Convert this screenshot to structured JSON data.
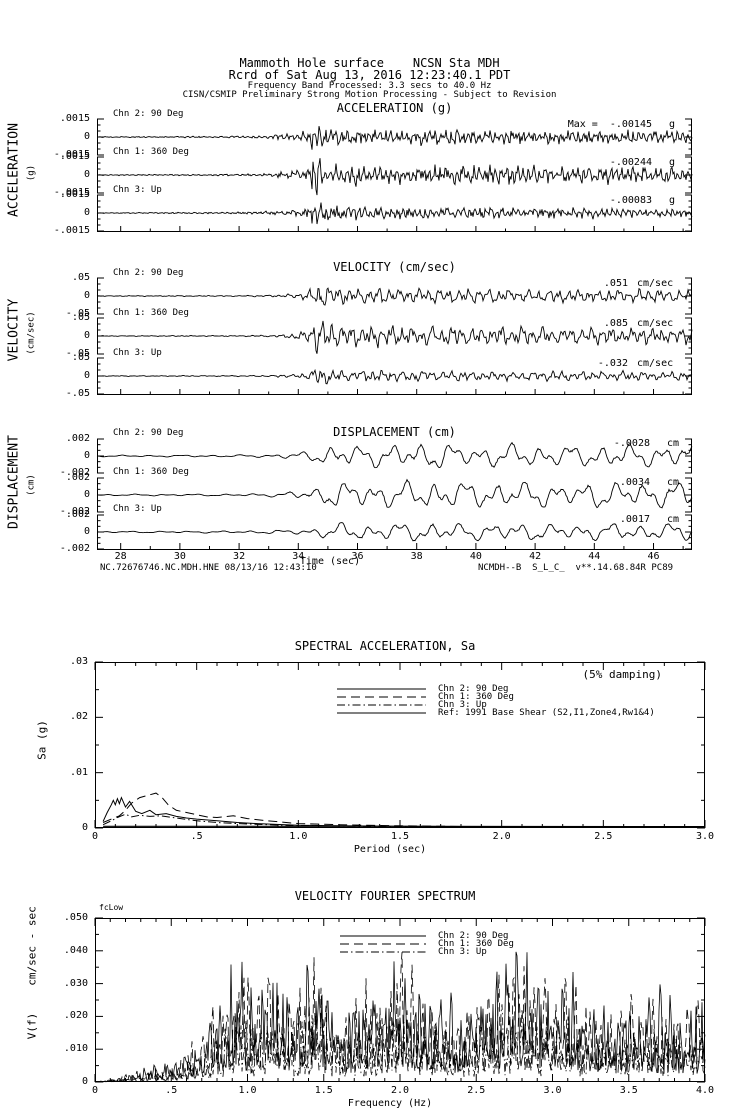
{
  "header": {
    "line1": "Mammoth Hole surface    NCSN Sta MDH",
    "line2": "Rcrd of Sat Aug 13, 2016 12:23:40.1 PDT",
    "line3": "Frequency Band Processed: 3.3 secs to 40.0 Hz",
    "line4": "CISN/CSMIP Preliminary Strong Motion Processing - Subject to Revision"
  },
  "colors": {
    "ink": "#000000",
    "background": "#ffffff"
  },
  "time_series": {
    "footer_left": "NC.72676746.NC.MDH.HNE 08/13/16 12:43:10",
    "footer_right": "NCMDH--B  S_L_C_  v**.14.68.84R PC89",
    "time_axis": {
      "label": "Time (sec)",
      "tick_labels": [
        "28",
        "30",
        "32",
        "34",
        "36",
        "38",
        "40",
        "42",
        "44",
        "46"
      ]
    },
    "panels": [
      {
        "id": "acceleration",
        "title": "ACCELERATION (g)",
        "side_label": "ACCELERATION",
        "side_unit": "(g)",
        "axis_labels": [
          ".0015",
          "0",
          "-.0015"
        ],
        "channels": [
          {
            "name": "Chn 2: 90 Deg",
            "max": "Max =  -.00145",
            "unit": "g"
          },
          {
            "name": "Chn 1: 360 Deg",
            "max": "-.00244",
            "unit": "g"
          },
          {
            "name": "Chn 3: Up",
            "max": "-.00083",
            "unit": "g"
          }
        ]
      },
      {
        "id": "velocity",
        "title": "VELOCITY (cm/sec)",
        "side_label": "VELOCITY",
        "side_unit": "(cm/sec)",
        "axis_labels": [
          ".05",
          "0",
          "-.05"
        ],
        "channels": [
          {
            "name": "Chn 2: 90 Deg",
            "max": ".051",
            "unit": "cm/sec"
          },
          {
            "name": "Chn 1: 360 Deg",
            "max": ".085",
            "unit": "cm/sec"
          },
          {
            "name": "Chn 3: Up",
            "max": "-.032",
            "unit": "cm/sec"
          }
        ]
      },
      {
        "id": "displacement",
        "title": "DISPLACEMENT (cm)",
        "side_label": "DISPLACEMENT",
        "side_unit": "(cm)",
        "axis_labels": [
          ".002",
          "0",
          "-.002"
        ],
        "channels": [
          {
            "name": "Chn 2: 90 Deg",
            "max": "-.0028",
            "unit": "cm"
          },
          {
            "name": "Chn 1: 360 Deg",
            "max": ".0034",
            "unit": "cm"
          },
          {
            "name": "Chn 3: Up",
            "max": ".0017",
            "unit": "cm"
          }
        ]
      }
    ]
  },
  "sa_plot": {
    "title": "SPECTRAL ACCELERATION, Sa",
    "damping_note": "(5% damping)",
    "ylabel": "Sa (g)",
    "xlabel": "Period (sec)",
    "y_ticks": [
      ".03",
      ".02",
      ".01",
      "0"
    ],
    "x_ticks": [
      "0",
      ".5",
      "1.0",
      "1.5",
      "2.0",
      "2.5",
      "3.0"
    ],
    "legend": [
      {
        "label": "Chn 2: 90 Deg",
        "style": "solid"
      },
      {
        "label": "Chn 1: 360 Deg",
        "style": "longdash"
      },
      {
        "label": "Chn 3: Up",
        "style": "dashdot"
      },
      {
        "label": "Ref: 1991 Base Shear (S2,I1,Zone4,Rw1&4)",
        "style": "solid"
      }
    ]
  },
  "fourier_plot": {
    "title": "VELOCITY FOURIER SPECTRUM",
    "corner_label": "fcLow",
    "ylabel_top": "cm/sec - sec",
    "ylabel_bottom": "V(f)",
    "xlabel": "Frequency (Hz)",
    "y_ticks": [
      ".050",
      ".040",
      ".030",
      ".020",
      ".010",
      "0"
    ],
    "x_ticks": [
      "0",
      ".5",
      "1.0",
      "1.5",
      "2.0",
      "2.5",
      "3.0",
      "3.5",
      "4.0"
    ],
    "legend": [
      {
        "label": "Chn 2: 90 Deg",
        "style": "solid"
      },
      {
        "label": "Chn 1: 360 Deg",
        "style": "longdash"
      },
      {
        "label": "Chn 3: Up",
        "style": "dashdot"
      }
    ]
  },
  "chart_data": [
    {
      "type": "line",
      "id": "acceleration-time-series",
      "title": "ACCELERATION (g)",
      "xlabel": "Time (sec)",
      "xlim": [
        27.2,
        47.3
      ],
      "ylim_per_channel": [
        -0.0015,
        0.0015
      ],
      "event_onset_sec": 34.4,
      "series": [
        {
          "name": "Chn 2: 90 Deg",
          "max_value": -0.00145,
          "unit": "g"
        },
        {
          "name": "Chn 1: 360 Deg",
          "max_value": -0.00244,
          "unit": "g"
        },
        {
          "name": "Chn 3: Up",
          "max_value": -0.00083,
          "unit": "g"
        }
      ]
    },
    {
      "type": "line",
      "id": "velocity-time-series",
      "title": "VELOCITY (cm/sec)",
      "xlabel": "Time (sec)",
      "xlim": [
        27.2,
        47.3
      ],
      "ylim_per_channel": [
        -0.05,
        0.05
      ],
      "event_onset_sec": 34.4,
      "series": [
        {
          "name": "Chn 2: 90 Deg",
          "max_value": 0.051,
          "unit": "cm/sec"
        },
        {
          "name": "Chn 1: 360 Deg",
          "max_value": 0.085,
          "unit": "cm/sec"
        },
        {
          "name": "Chn 3: Up",
          "max_value": -0.032,
          "unit": "cm/sec"
        }
      ]
    },
    {
      "type": "line",
      "id": "displacement-time-series",
      "title": "DISPLACEMENT (cm)",
      "xlabel": "Time (sec)",
      "xlim": [
        27.2,
        47.3
      ],
      "ylim_per_channel": [
        -0.002,
        0.002
      ],
      "event_onset_sec": 34.4,
      "series": [
        {
          "name": "Chn 2: 90 Deg",
          "max_value": -0.0028,
          "unit": "cm"
        },
        {
          "name": "Chn 1: 360 Deg",
          "max_value": 0.0034,
          "unit": "cm"
        },
        {
          "name": "Chn 3: Up",
          "max_value": 0.0017,
          "unit": "cm"
        }
      ]
    },
    {
      "type": "line",
      "id": "spectral-acceleration",
      "title": "SPECTRAL ACCELERATION, Sa",
      "xlabel": "Period (sec)",
      "ylabel": "Sa (g)",
      "xlim": [
        0,
        3.0
      ],
      "ylim": [
        0,
        0.03
      ],
      "damping": "5%",
      "legend_position": "upper center",
      "grid": false,
      "series": [
        {
          "name": "Chn 2: 90 Deg",
          "style": "solid",
          "points": [
            [
              0.04,
              0.0012
            ],
            [
              0.06,
              0.0028
            ],
            [
              0.08,
              0.0042
            ],
            [
              0.09,
              0.005
            ],
            [
              0.1,
              0.0042
            ],
            [
              0.11,
              0.0053
            ],
            [
              0.12,
              0.0044
            ],
            [
              0.13,
              0.0055
            ],
            [
              0.15,
              0.0038
            ],
            [
              0.17,
              0.0048
            ],
            [
              0.2,
              0.003
            ],
            [
              0.23,
              0.0026
            ],
            [
              0.27,
              0.0032
            ],
            [
              0.3,
              0.0024
            ],
            [
              0.35,
              0.0026
            ],
            [
              0.4,
              0.0021
            ],
            [
              0.45,
              0.0018
            ],
            [
              0.5,
              0.0016
            ],
            [
              0.6,
              0.0013
            ],
            [
              0.7,
              0.001
            ],
            [
              0.8,
              0.0008
            ],
            [
              1.0,
              0.0005
            ],
            [
              1.2,
              0.0004
            ],
            [
              1.5,
              0.0003
            ],
            [
              2.0,
              0.0002
            ],
            [
              2.5,
              0.00015
            ],
            [
              3.0,
              0.0001
            ]
          ]
        },
        {
          "name": "Chn 1: 360 Deg",
          "style": "longdash",
          "points": [
            [
              0.04,
              0.001
            ],
            [
              0.08,
              0.0016
            ],
            [
              0.12,
              0.0022
            ],
            [
              0.15,
              0.0032
            ],
            [
              0.18,
              0.0045
            ],
            [
              0.22,
              0.0055
            ],
            [
              0.25,
              0.0058
            ],
            [
              0.3,
              0.0063
            ],
            [
              0.33,
              0.0055
            ],
            [
              0.36,
              0.0042
            ],
            [
              0.4,
              0.0032
            ],
            [
              0.45,
              0.0028
            ],
            [
              0.5,
              0.0024
            ],
            [
              0.55,
              0.002
            ],
            [
              0.6,
              0.0019
            ],
            [
              0.68,
              0.0022
            ],
            [
              0.75,
              0.0017
            ],
            [
              0.85,
              0.0013
            ],
            [
              1.0,
              0.0008
            ],
            [
              1.2,
              0.0006
            ],
            [
              1.5,
              0.0004
            ],
            [
              2.0,
              0.0002
            ],
            [
              2.5,
              0.00015
            ],
            [
              3.0,
              0.0001
            ]
          ]
        },
        {
          "name": "Chn 3: Up",
          "style": "dashdot",
          "points": [
            [
              0.04,
              0.0006
            ],
            [
              0.08,
              0.0013
            ],
            [
              0.11,
              0.0019
            ],
            [
              0.15,
              0.0025
            ],
            [
              0.18,
              0.002
            ],
            [
              0.22,
              0.0023
            ],
            [
              0.27,
              0.0021
            ],
            [
              0.32,
              0.0022
            ],
            [
              0.4,
              0.0018
            ],
            [
              0.5,
              0.0013
            ],
            [
              0.6,
              0.001
            ],
            [
              0.7,
              0.0008
            ],
            [
              0.85,
              0.0006
            ],
            [
              1.0,
              0.0004
            ],
            [
              1.3,
              0.0003
            ],
            [
              1.5,
              0.0002
            ],
            [
              2.0,
              0.00015
            ],
            [
              3.0,
              0.0001
            ]
          ]
        },
        {
          "name": "Ref: 1991 Base Shear (S2,I1,Zone4,Rw1&4)",
          "style": "solid",
          "points": [
            [
              0.04,
              0.0003
            ],
            [
              1.65,
              0.0003
            ],
            [
              3.0,
              0.00025
            ]
          ]
        }
      ]
    },
    {
      "type": "line",
      "id": "velocity-fourier-spectrum",
      "title": "VELOCITY FOURIER SPECTRUM",
      "xlabel": "Frequency (Hz)",
      "ylabel": "V(f) cm/sec - sec",
      "xlim": [
        0,
        4.0
      ],
      "ylim": [
        0,
        0.05
      ],
      "legend_position": "upper center",
      "grid": false,
      "envelope_points": [
        [
          0,
          0
        ],
        [
          0.12,
          0.001
        ],
        [
          0.25,
          0.003
        ],
        [
          0.4,
          0.005
        ],
        [
          0.55,
          0.007
        ],
        [
          0.7,
          0.014
        ],
        [
          0.8,
          0.022
        ],
        [
          0.9,
          0.03
        ],
        [
          0.95,
          0.041
        ],
        [
          1.05,
          0.024
        ],
        [
          1.15,
          0.034
        ],
        [
          1.25,
          0.028
        ],
        [
          1.35,
          0.03
        ],
        [
          1.45,
          0.04
        ],
        [
          1.55,
          0.028
        ],
        [
          1.65,
          0.024
        ],
        [
          1.75,
          0.03
        ],
        [
          1.85,
          0.027
        ],
        [
          2.0,
          0.038
        ],
        [
          2.1,
          0.032
        ],
        [
          2.2,
          0.028
        ],
        [
          2.3,
          0.027
        ],
        [
          2.4,
          0.022
        ],
        [
          2.5,
          0.026
        ],
        [
          2.6,
          0.03
        ],
        [
          2.75,
          0.04
        ],
        [
          2.85,
          0.032
        ],
        [
          3.0,
          0.029
        ],
        [
          3.1,
          0.03
        ],
        [
          3.25,
          0.022
        ],
        [
          3.4,
          0.02
        ],
        [
          3.55,
          0.026
        ],
        [
          3.65,
          0.029
        ],
        [
          3.8,
          0.022
        ],
        [
          3.9,
          0.021
        ],
        [
          4.0,
          0.027
        ]
      ],
      "series": [
        {
          "name": "Chn 2: 90 Deg",
          "style": "solid",
          "scale": 1.0
        },
        {
          "name": "Chn 1: 360 Deg",
          "style": "longdash",
          "scale": 0.95
        },
        {
          "name": "Chn 3: Up",
          "style": "dashdot",
          "scale": 0.58
        }
      ]
    }
  ]
}
